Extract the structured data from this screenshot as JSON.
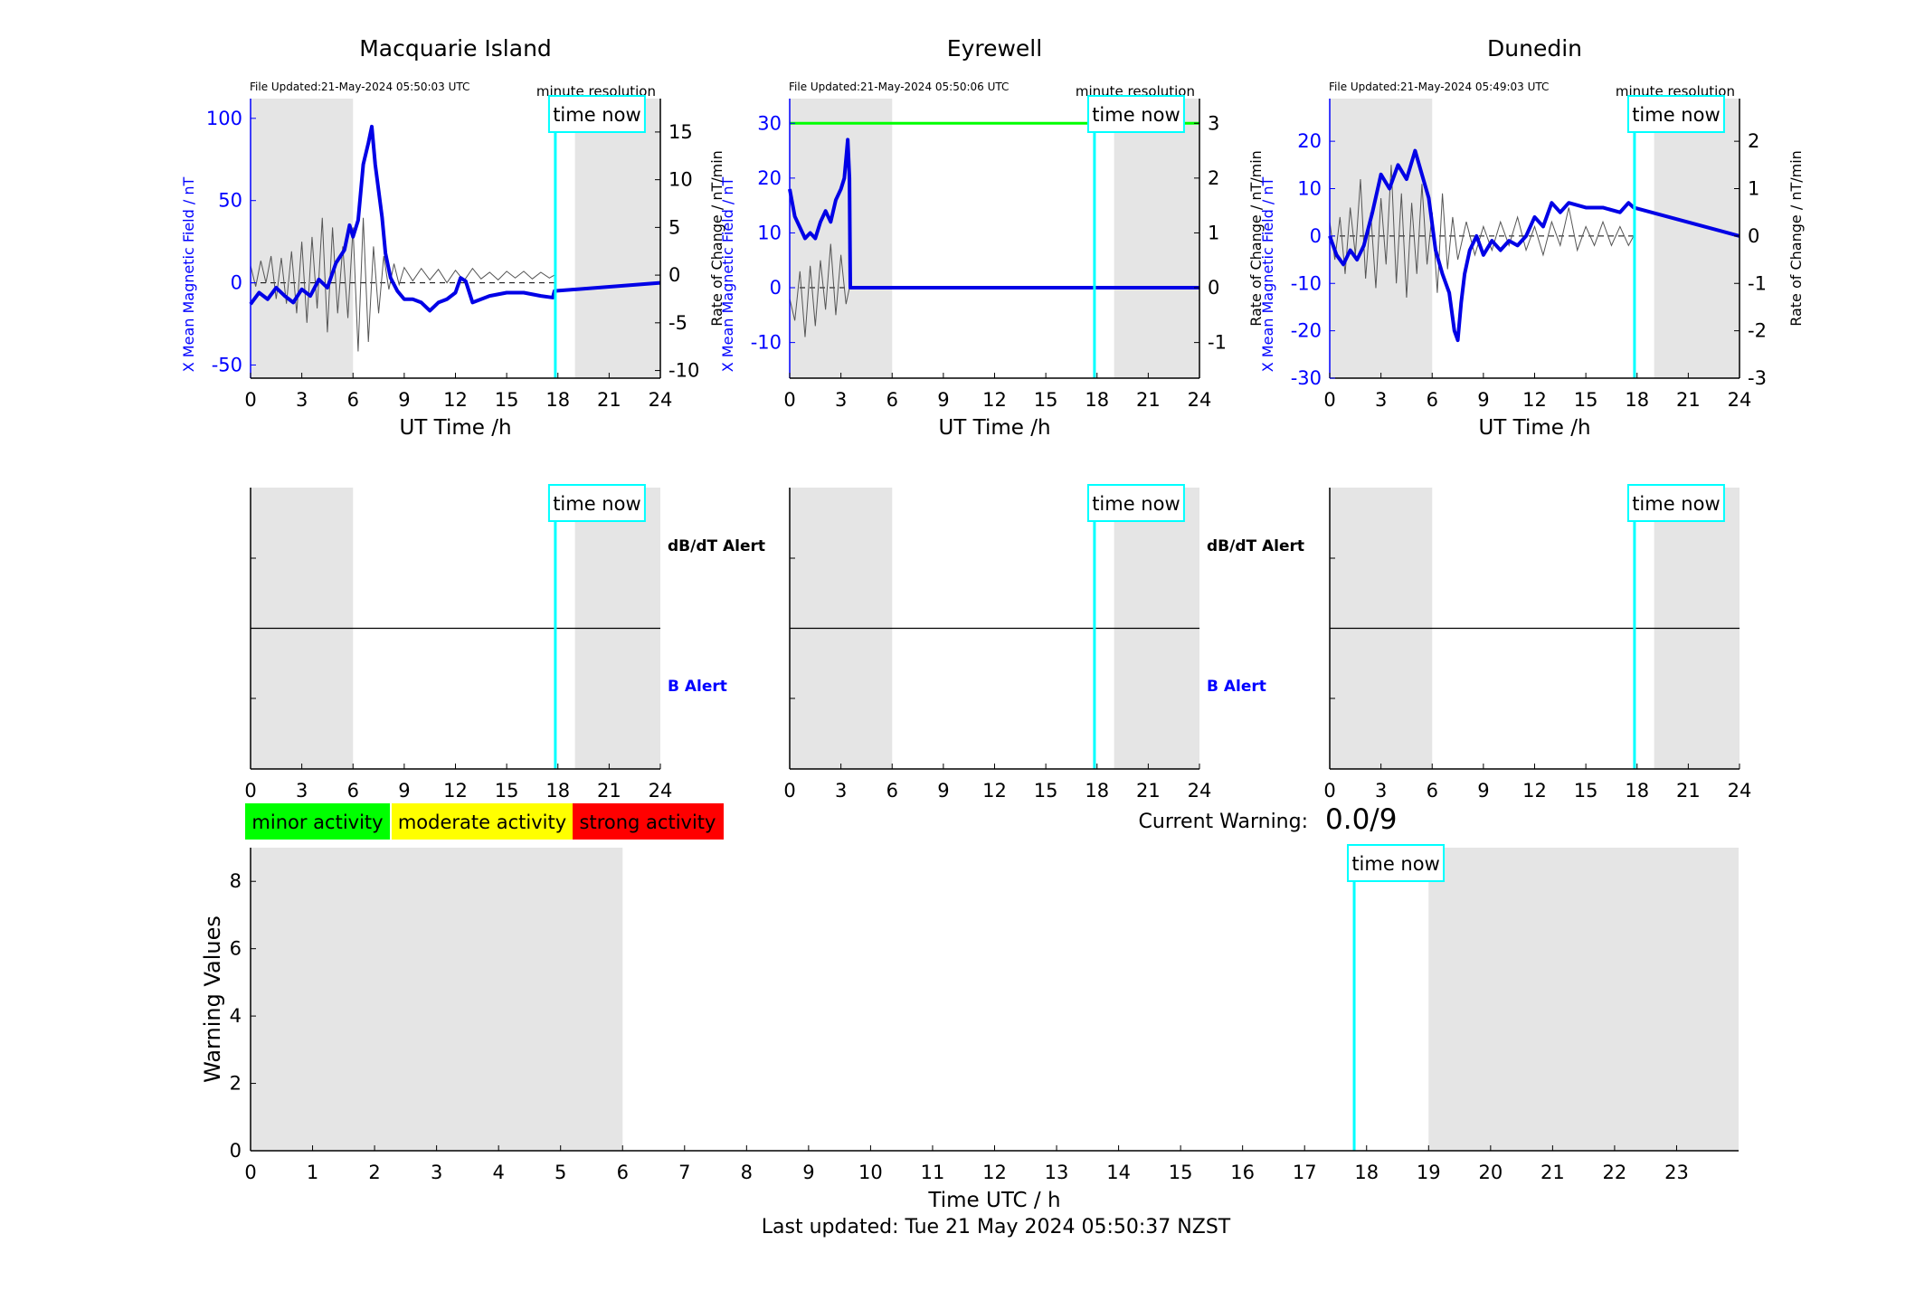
{
  "page": {
    "legend": [
      {
        "label": "minor activity",
        "color": "#00ff00"
      },
      {
        "label": "moderate activity",
        "color": "#ffff00"
      },
      {
        "label": "strong activity",
        "color": "#ff0000"
      }
    ],
    "current_warning_label": "Current Warning:",
    "current_warning_value": "0.0/9",
    "last_updated": "Last updated: Tue 21 May 2024 05:50:37 NZST",
    "time_now_label": "time now",
    "minute_resolution_label": "minute resolution",
    "dbdt_alert_label": "dB/dT Alert",
    "b_alert_label": "B Alert",
    "colors": {
      "blue": "#0000ff",
      "cyan": "#00ffff",
      "shade": "#e5e5e5",
      "green": "#00ff00",
      "dark": "#0000cc"
    }
  },
  "chart_data": [
    {
      "type": "line",
      "title": "Macquarie Island",
      "file_updated": "File Updated:21-May-2024 05:50:03 UTC",
      "xlabel": "UT Time /h",
      "ylabel_left": "X Mean Magnetic Field / nT",
      "ylabel_right": "Rate of Change / nT/min",
      "xlim": [
        0,
        24
      ],
      "xticks": [
        0,
        3,
        6,
        9,
        12,
        15,
        18,
        21,
        24
      ],
      "ylim_left": [
        -58,
        112
      ],
      "yticks_left": [
        -50,
        0,
        50,
        100
      ],
      "ylim_right": [
        -10.8,
        18.5
      ],
      "yticks_right": [
        -10,
        -5,
        0,
        5,
        10,
        15
      ],
      "time_now": 17.85,
      "shaded_ranges": [
        [
          0,
          6
        ],
        [
          19,
          24
        ]
      ],
      "series": [
        {
          "axis": "left",
          "x": [
            0,
            0.5,
            1,
            1.5,
            2,
            2.5,
            3,
            3.5,
            4,
            4.5,
            5,
            5.5,
            5.8,
            6,
            6.3,
            6.6,
            6.9,
            7.1,
            7.3,
            7.5,
            7.7,
            7.9,
            8.2,
            8.6,
            9,
            9.5,
            10,
            10.5,
            11,
            11.5,
            12,
            12.3,
            12.6,
            13,
            13.5,
            14,
            15,
            16,
            17,
            17.7,
            17.8,
            24
          ],
          "values": [
            -13,
            -6,
            -10,
            -3,
            -8,
            -12,
            -4,
            -8,
            2,
            -3,
            12,
            20,
            35,
            28,
            38,
            72,
            85,
            95,
            72,
            56,
            40,
            18,
            3,
            -5,
            -10,
            -10,
            -12,
            -17,
            -12,
            -10,
            -6,
            3,
            1,
            -12,
            -10,
            -8,
            -6,
            -6,
            -8,
            -9,
            -5,
            0
          ]
        },
        {
          "axis": "right",
          "name": "",
          "x": [
            0,
            0.3,
            0.6,
            0.9,
            1.2,
            1.5,
            1.8,
            2.1,
            2.4,
            2.7,
            3,
            3.3,
            3.6,
            3.9,
            4.2,
            4.5,
            4.8,
            5.1,
            5.4,
            5.7,
            6,
            6.3,
            6.6,
            6.9,
            7.2,
            7.5,
            7.8,
            8.1,
            8.4,
            8.7,
            9,
            9.5,
            10,
            10.5,
            11,
            11.5,
            12,
            12.5,
            13,
            13.5,
            14,
            14.5,
            15,
            15.5,
            16,
            16.5,
            17,
            17.5,
            17.8
          ],
          "values": [
            1,
            -1.2,
            1.5,
            -0.8,
            2,
            -2.5,
            1.8,
            -3,
            2.5,
            -4,
            3.5,
            -5,
            4,
            -3.5,
            6,
            -6,
            5,
            -4,
            3,
            -4.5,
            5,
            -8,
            6,
            -7,
            3,
            -4,
            2,
            -1.5,
            1.2,
            -1,
            0.8,
            -0.6,
            0.7,
            -0.5,
            0.6,
            -0.8,
            0.5,
            -0.6,
            0.7,
            -0.4,
            0.3,
            -0.5,
            0.4,
            -0.3,
            0.4,
            -0.4,
            0.3,
            -0.3,
            0
          ]
        }
      ]
    },
    {
      "type": "line",
      "title": "Eyrewell",
      "file_updated": "File Updated:21-May-2024 05:50:06 UTC",
      "xlabel": "UT Time /h",
      "ylabel_left": "X Mean Magnetic Field / nT",
      "ylabel_right": "Rate of Change / nT/min",
      "xlim": [
        0,
        24
      ],
      "xticks": [
        0,
        3,
        6,
        9,
        12,
        15,
        18,
        21,
        24
      ],
      "ylim_left": [
        -16.5,
        34.5
      ],
      "yticks_left": [
        -10,
        0,
        10,
        20,
        30
      ],
      "ylim_right": [
        -1.65,
        3.45
      ],
      "yticks_right": [
        -1,
        0,
        1,
        2,
        3
      ],
      "time_now": 17.85,
      "shaded_ranges": [
        [
          0,
          6
        ],
        [
          19,
          24
        ]
      ],
      "reference_line_left": 30,
      "series": [
        {
          "axis": "left",
          "x": [
            0,
            0.3,
            0.6,
            0.9,
            1.2,
            1.5,
            1.8,
            2.1,
            2.4,
            2.7,
            3,
            3.2,
            3.4,
            3.5,
            3.55,
            24
          ],
          "values": [
            18,
            13,
            11,
            9,
            10,
            9,
            12,
            14,
            12,
            16,
            18,
            20,
            27,
            20,
            0,
            0
          ]
        },
        {
          "axis": "right",
          "name": "",
          "x": [
            0,
            0.3,
            0.6,
            0.9,
            1.2,
            1.5,
            1.8,
            2.1,
            2.4,
            2.7,
            3,
            3.3,
            3.5
          ],
          "values": [
            -0.2,
            -0.6,
            0.3,
            -0.9,
            0.4,
            -0.7,
            0.5,
            -0.4,
            0.8,
            -0.5,
            0.6,
            -0.3,
            0
          ]
        }
      ]
    },
    {
      "type": "line",
      "title": "Dunedin",
      "file_updated": "File Updated:21-May-2024 05:49:03 UTC",
      "xlabel": "UT Time /h",
      "ylabel_left": "X Mean Magnetic Field / nT",
      "ylabel_right": "Rate of Change / nT/min",
      "xlim": [
        0,
        24
      ],
      "xticks": [
        0,
        3,
        6,
        9,
        12,
        15,
        18,
        21,
        24
      ],
      "ylim_left": [
        -30,
        29
      ],
      "yticks_left": [
        -30,
        -20,
        -10,
        0,
        10,
        20
      ],
      "ylim_right": [
        -3,
        2.9
      ],
      "yticks_right": [
        -3,
        -2,
        -1,
        0,
        1,
        2
      ],
      "time_now": 17.85,
      "shaded_ranges": [
        [
          0,
          6
        ],
        [
          19,
          24
        ]
      ],
      "series": [
        {
          "axis": "left",
          "x": [
            0,
            0.4,
            0.8,
            1.2,
            1.6,
            2,
            2.5,
            3,
            3.5,
            4,
            4.5,
            5,
            5.4,
            5.8,
            6.2,
            6.6,
            7,
            7.3,
            7.5,
            7.7,
            7.9,
            8.2,
            8.6,
            9,
            9.5,
            10,
            10.5,
            11,
            11.5,
            12,
            12.5,
            13,
            13.5,
            14,
            15,
            16,
            17,
            17.5,
            17.8,
            24
          ],
          "values": [
            0,
            -4,
            -6,
            -3,
            -5,
            -2,
            5,
            13,
            10,
            15,
            12,
            18,
            13,
            8,
            -3,
            -8,
            -12,
            -20,
            -22,
            -14,
            -8,
            -3,
            0,
            -4,
            -1,
            -3,
            -1,
            -2,
            0,
            4,
            2,
            7,
            5,
            7,
            6,
            6,
            5,
            7,
            6,
            0
          ]
        },
        {
          "axis": "right",
          "name": "",
          "x": [
            0,
            0.3,
            0.6,
            0.9,
            1.2,
            1.5,
            1.8,
            2.1,
            2.4,
            2.7,
            3,
            3.3,
            3.6,
            3.9,
            4.2,
            4.5,
            4.8,
            5.1,
            5.4,
            5.7,
            6,
            6.3,
            6.6,
            6.9,
            7.2,
            7.5,
            8,
            8.5,
            9,
            9.5,
            10,
            10.5,
            11,
            11.5,
            12,
            12.5,
            13,
            13.5,
            14,
            14.5,
            15,
            15.5,
            16,
            16.5,
            17,
            17.5,
            17.8
          ],
          "values": [
            0.3,
            -0.5,
            0.4,
            -0.8,
            0.6,
            -0.4,
            1.2,
            -0.9,
            0.5,
            -1.1,
            0.8,
            -0.6,
            1.5,
            -1,
            0.9,
            -1.3,
            0.7,
            -0.8,
            1.1,
            -0.6,
            0.5,
            -1.2,
            0.9,
            -0.7,
            0.4,
            -0.5,
            0.3,
            -0.4,
            0.2,
            -0.3,
            0.3,
            -0.2,
            0.4,
            -0.3,
            0.2,
            -0.4,
            0.3,
            -0.2,
            0.6,
            -0.3,
            0.2,
            -0.2,
            0.3,
            -0.2,
            0.2,
            -0.2,
            0
          ]
        }
      ]
    },
    {
      "type": "bar",
      "title": "",
      "xlabel": "Time UTC / h",
      "ylabel": "Warning Values",
      "xlim": [
        0,
        24
      ],
      "xticks": [
        0,
        1,
        2,
        3,
        4,
        5,
        6,
        7,
        8,
        9,
        10,
        11,
        12,
        13,
        14,
        15,
        16,
        17,
        18,
        19,
        20,
        21,
        22,
        23
      ],
      "ylim": [
        0,
        9
      ],
      "yticks": [
        0,
        2,
        4,
        6,
        8
      ],
      "time_now": 17.8,
      "shaded_ranges": [
        [
          0,
          6
        ],
        [
          19,
          24
        ]
      ],
      "values": []
    }
  ]
}
